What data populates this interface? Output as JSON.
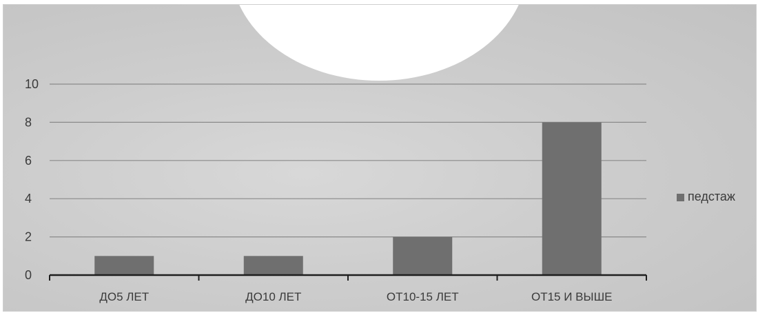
{
  "chart_data": {
    "type": "bar",
    "categories": [
      "ДО5 ЛЕТ",
      "ДО10 ЛЕТ",
      "ОТ10-15 ЛЕТ",
      "ОТ15 И ВЫШЕ"
    ],
    "series": [
      {
        "name": "педстаж",
        "values": [
          1,
          1,
          2,
          8
        ],
        "color": "#6f6f6f"
      }
    ],
    "ylim": [
      0,
      10
    ],
    "yticks": [
      0,
      2,
      4,
      6,
      8,
      10
    ],
    "grid": true,
    "legend": "right"
  }
}
